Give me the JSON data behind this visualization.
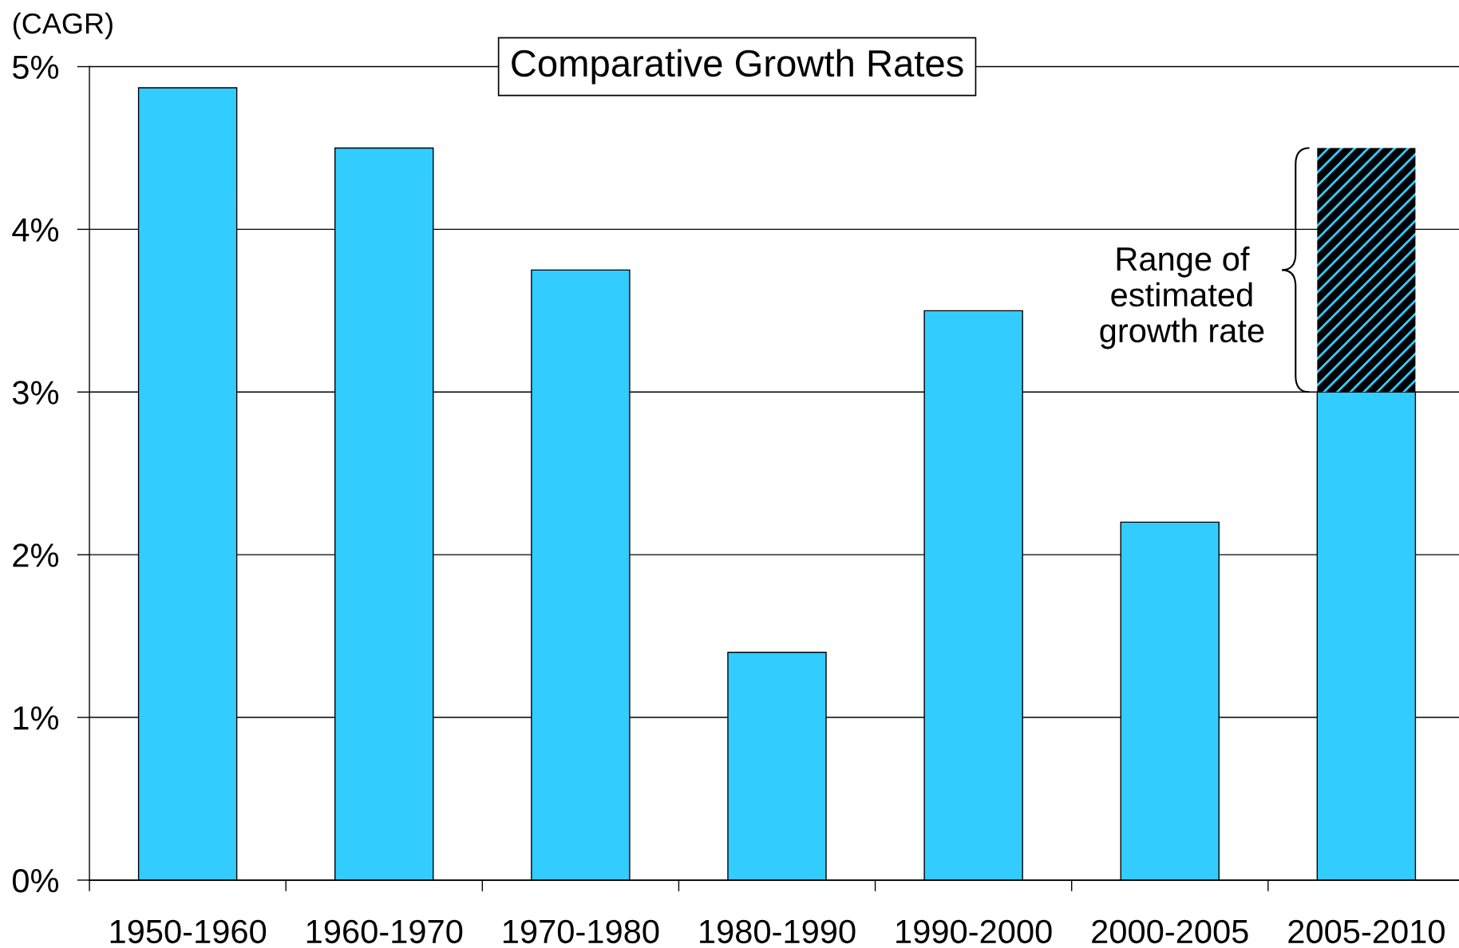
{
  "chart_data": {
    "type": "bar",
    "title": "Comparative Growth Rates",
    "ylabel": "(CAGR)",
    "categories": [
      "1950-1960",
      "1960-1970",
      "1970-1980",
      "1980-1990",
      "1990-2000",
      "2000-2005",
      "2005-2010"
    ],
    "stacked": true,
    "series": [
      {
        "color": "#33ccff",
        "values": [
          4.87,
          4.5,
          3.75,
          1.4,
          3.5,
          2.2,
          3.0
        ]
      },
      {
        "color": "#000000",
        "values": [
          null,
          null,
          null,
          null,
          null,
          null,
          1.5
        ]
      }
    ],
    "ylim": [
      0,
      5
    ],
    "yticks": [
      {
        "value": 0,
        "label": "0%"
      },
      {
        "value": 1,
        "label": "1%"
      },
      {
        "value": 2,
        "label": "2%"
      },
      {
        "value": 3,
        "label": "3%"
      },
      {
        "value": 4,
        "label": "4%"
      },
      {
        "value": 5,
        "label": "5%"
      }
    ],
    "grid": "y",
    "annotations": [
      "Range of\nestimated\ngrowth rate"
    ]
  }
}
